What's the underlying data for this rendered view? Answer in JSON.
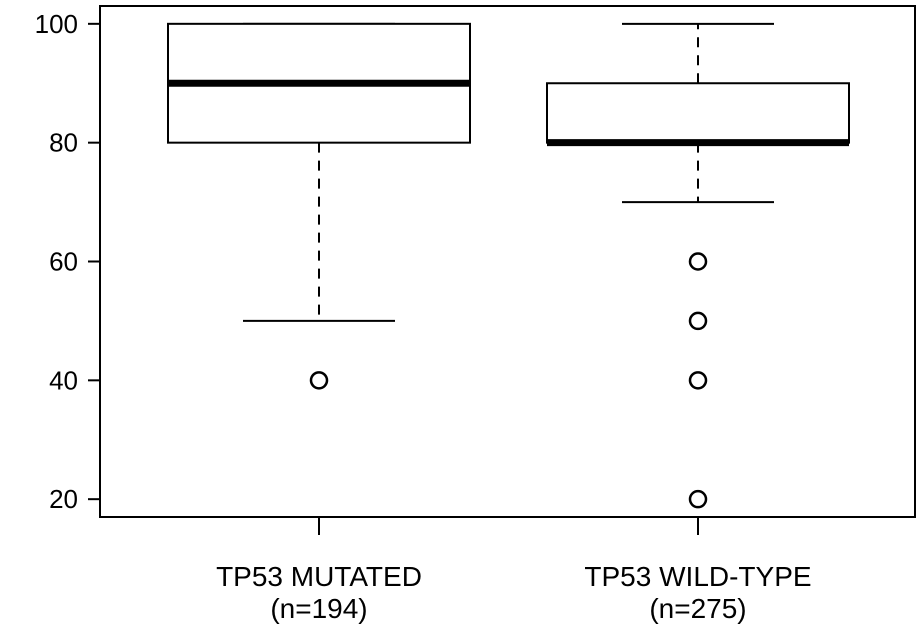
{
  "chart_data": {
    "type": "box",
    "y_axis": {
      "ylim": [
        17,
        103
      ],
      "ticks": [
        "20",
        "40",
        "60",
        "80",
        "100"
      ]
    },
    "groups": [
      {
        "label": "TP53 MUTATED",
        "n_label": "(n=194)",
        "whisker_low": 50,
        "q1": 80,
        "median": 90,
        "q3": 100,
        "whisker_high": 100,
        "outliers": [
          40
        ]
      },
      {
        "label": "TP53 WILD-TYPE",
        "n_label": "(n=275)",
        "whisker_low": 70,
        "q1": 80,
        "median": 80,
        "q3": 90,
        "whisker_high": 100,
        "outliers": [
          60,
          50,
          40,
          20
        ]
      }
    ]
  }
}
